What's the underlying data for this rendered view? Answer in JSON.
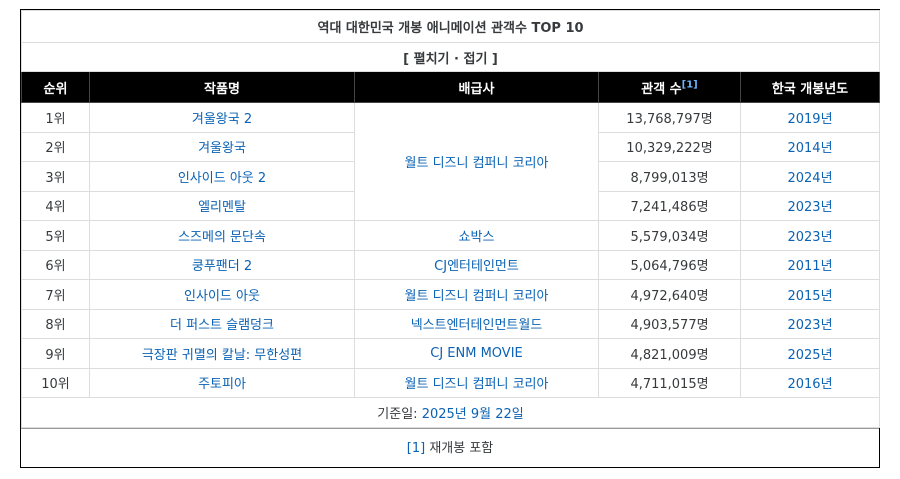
{
  "title": "역대 대한민국 개봉 애니메이션 관객수 TOP 10",
  "toggle": "[ 펼치기 · 접기 ]",
  "headers": [
    "순위",
    "작품명",
    "배급사",
    "관객 수",
    "한국 개봉년도"
  ],
  "header_note_ref": "[1]",
  "rows": [
    {
      "rank": "1위",
      "title": "겨울왕국 2",
      "distributor": "월트 디즈니 컴퍼니 코리아",
      "audience": "13,768,797명",
      "year": "2019년"
    },
    {
      "rank": "2위",
      "title": "겨울왕국",
      "audience": "10,329,222명",
      "year": "2014년"
    },
    {
      "rank": "3위",
      "title": "인사이드 아웃 2",
      "audience": "8,799,013명",
      "year": "2024년"
    },
    {
      "rank": "4위",
      "title": "엘리멘탈",
      "audience": "7,241,486명",
      "year": "2023년"
    },
    {
      "rank": "5위",
      "title": "스즈메의 문단속",
      "distributor": "쇼박스",
      "audience": "5,579,034명",
      "year": "2023년"
    },
    {
      "rank": "6위",
      "title": "쿵푸팬더 2",
      "distributor": "CJ엔터테인먼트",
      "audience": "5,064,796명",
      "year": "2011년"
    },
    {
      "rank": "7위",
      "title": "인사이드 아웃",
      "distributor": "월트 디즈니 컴퍼니 코리아",
      "audience": "4,972,640명",
      "year": "2015년"
    },
    {
      "rank": "8위",
      "title": "더 퍼스트 슬램덩크",
      "distributor": "넥스트엔터테인먼트월드",
      "audience": "4,903,577명",
      "year": "2023년"
    },
    {
      "rank": "9위",
      "title": "극장판 귀멸의 칼날: 무한성편",
      "distributor": "CJ ENM MOVIE",
      "audience": "4,821,009명",
      "year": "2025년"
    },
    {
      "rank": "10위",
      "title": "주토피아",
      "distributor": "월트 디즈니 컴퍼니 코리아",
      "audience": "4,711,015명",
      "year": "2016년"
    }
  ],
  "footer": {
    "label": "기준일:",
    "date": "2025년 9월 22일"
  },
  "footnote": {
    "ref": "[1]",
    "text": "재개봉 포함"
  }
}
